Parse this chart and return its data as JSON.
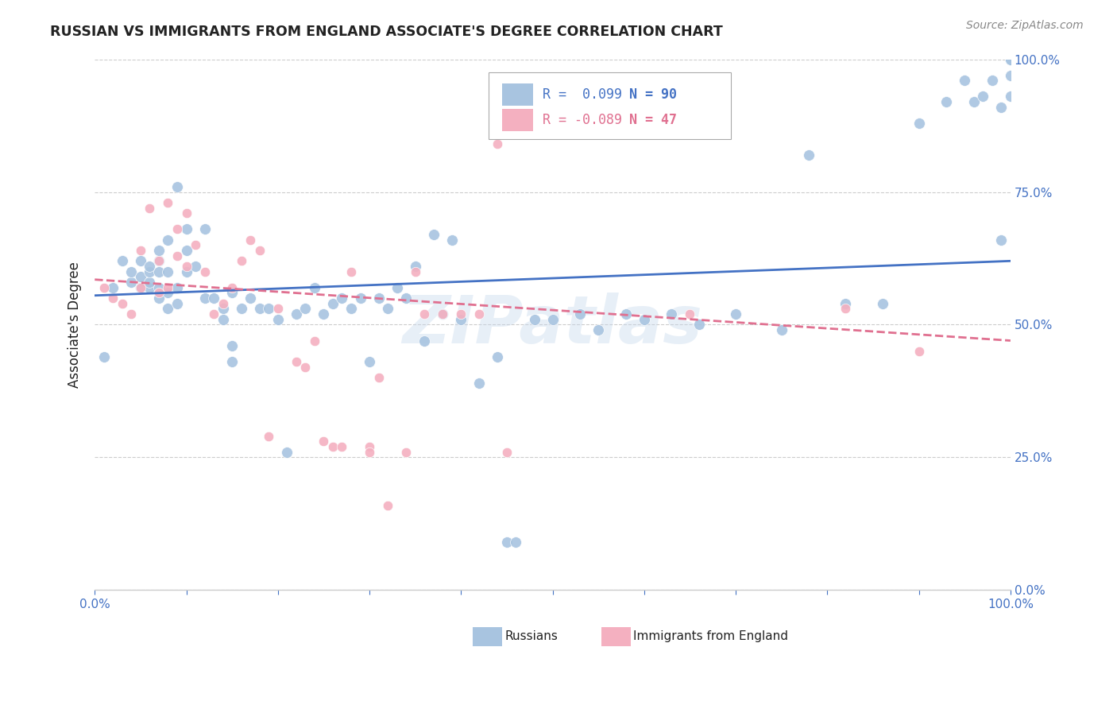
{
  "title": "RUSSIAN VS IMMIGRANTS FROM ENGLAND ASSOCIATE'S DEGREE CORRELATION CHART",
  "source_text": "Source: ZipAtlas.com",
  "ylabel": "Associate's Degree",
  "xlim": [
    0,
    1
  ],
  "ylim": [
    0,
    1
  ],
  "ytick_labels": [
    "0.0%",
    "25.0%",
    "50.0%",
    "75.0%",
    "100.0%"
  ],
  "ytick_positions": [
    0.0,
    0.25,
    0.5,
    0.75,
    1.0
  ],
  "xtick_positions": [
    0.0,
    0.1,
    0.2,
    0.3,
    0.4,
    0.5,
    0.6,
    0.7,
    0.8,
    0.9,
    1.0
  ],
  "watermark": "ZIPatlas",
  "blue_color": "#a8c4e0",
  "pink_color": "#f4b0c0",
  "blue_line_color": "#4472c4",
  "pink_line_color": "#e07090",
  "legend_blue_label_r": "R =  0.099",
  "legend_blue_label_n": "N = 90",
  "legend_pink_label_r": "R = -0.089",
  "legend_pink_label_n": "N = 47",
  "legend_bottom_blue": "Russians",
  "legend_bottom_pink": "Immigrants from England",
  "blue_intercept": 0.555,
  "blue_slope": 0.065,
  "pink_intercept": 0.585,
  "pink_slope": -0.115,
  "blue_x": [
    0.01,
    0.02,
    0.03,
    0.04,
    0.04,
    0.05,
    0.05,
    0.05,
    0.06,
    0.06,
    0.06,
    0.06,
    0.07,
    0.07,
    0.07,
    0.07,
    0.07,
    0.08,
    0.08,
    0.08,
    0.08,
    0.09,
    0.09,
    0.09,
    0.1,
    0.1,
    0.1,
    0.11,
    0.12,
    0.12,
    0.13,
    0.14,
    0.14,
    0.15,
    0.15,
    0.15,
    0.16,
    0.17,
    0.18,
    0.19,
    0.2,
    0.21,
    0.22,
    0.23,
    0.24,
    0.25,
    0.26,
    0.27,
    0.28,
    0.29,
    0.3,
    0.31,
    0.32,
    0.33,
    0.34,
    0.35,
    0.36,
    0.37,
    0.38,
    0.39,
    0.4,
    0.42,
    0.44,
    0.45,
    0.46,
    0.48,
    0.5,
    0.53,
    0.55,
    0.58,
    0.6,
    0.63,
    0.66,
    0.7,
    0.75,
    0.78,
    0.82,
    0.86,
    0.9,
    0.93,
    0.95,
    0.96,
    0.97,
    0.98,
    0.99,
    0.99,
    1.0,
    1.0,
    1.0,
    1.0
  ],
  "blue_y": [
    0.44,
    0.57,
    0.62,
    0.58,
    0.6,
    0.57,
    0.59,
    0.62,
    0.57,
    0.58,
    0.6,
    0.61,
    0.55,
    0.57,
    0.6,
    0.62,
    0.64,
    0.53,
    0.56,
    0.6,
    0.66,
    0.54,
    0.57,
    0.76,
    0.6,
    0.64,
    0.68,
    0.61,
    0.55,
    0.68,
    0.55,
    0.51,
    0.53,
    0.43,
    0.46,
    0.56,
    0.53,
    0.55,
    0.53,
    0.53,
    0.51,
    0.26,
    0.52,
    0.53,
    0.57,
    0.52,
    0.54,
    0.55,
    0.53,
    0.55,
    0.43,
    0.55,
    0.53,
    0.57,
    0.55,
    0.61,
    0.47,
    0.67,
    0.52,
    0.66,
    0.51,
    0.39,
    0.44,
    0.09,
    0.09,
    0.51,
    0.51,
    0.52,
    0.49,
    0.52,
    0.51,
    0.52,
    0.5,
    0.52,
    0.49,
    0.82,
    0.54,
    0.54,
    0.88,
    0.92,
    0.96,
    0.92,
    0.93,
    0.96,
    0.66,
    0.91,
    0.93,
    0.97,
    1.0,
    1.0
  ],
  "pink_x": [
    0.01,
    0.02,
    0.03,
    0.04,
    0.05,
    0.05,
    0.06,
    0.07,
    0.07,
    0.08,
    0.08,
    0.09,
    0.09,
    0.1,
    0.1,
    0.11,
    0.12,
    0.13,
    0.14,
    0.15,
    0.16,
    0.17,
    0.18,
    0.19,
    0.2,
    0.22,
    0.23,
    0.24,
    0.25,
    0.26,
    0.27,
    0.28,
    0.3,
    0.3,
    0.31,
    0.32,
    0.34,
    0.35,
    0.36,
    0.38,
    0.4,
    0.42,
    0.44,
    0.45,
    0.65,
    0.82,
    0.9
  ],
  "pink_y": [
    0.57,
    0.55,
    0.54,
    0.52,
    0.57,
    0.64,
    0.72,
    0.56,
    0.62,
    0.57,
    0.73,
    0.63,
    0.68,
    0.61,
    0.71,
    0.65,
    0.6,
    0.52,
    0.54,
    0.57,
    0.62,
    0.66,
    0.64,
    0.29,
    0.53,
    0.43,
    0.42,
    0.47,
    0.28,
    0.27,
    0.27,
    0.6,
    0.27,
    0.26,
    0.4,
    0.16,
    0.26,
    0.6,
    0.52,
    0.52,
    0.52,
    0.52,
    0.84,
    0.26,
    0.52,
    0.53,
    0.45
  ],
  "blue_dot_size": 100,
  "pink_dot_size": 80,
  "background_color": "#ffffff",
  "grid_color": "#cccccc",
  "title_color": "#222222",
  "axis_color": "#4472c4",
  "spine_color": "#cccccc"
}
